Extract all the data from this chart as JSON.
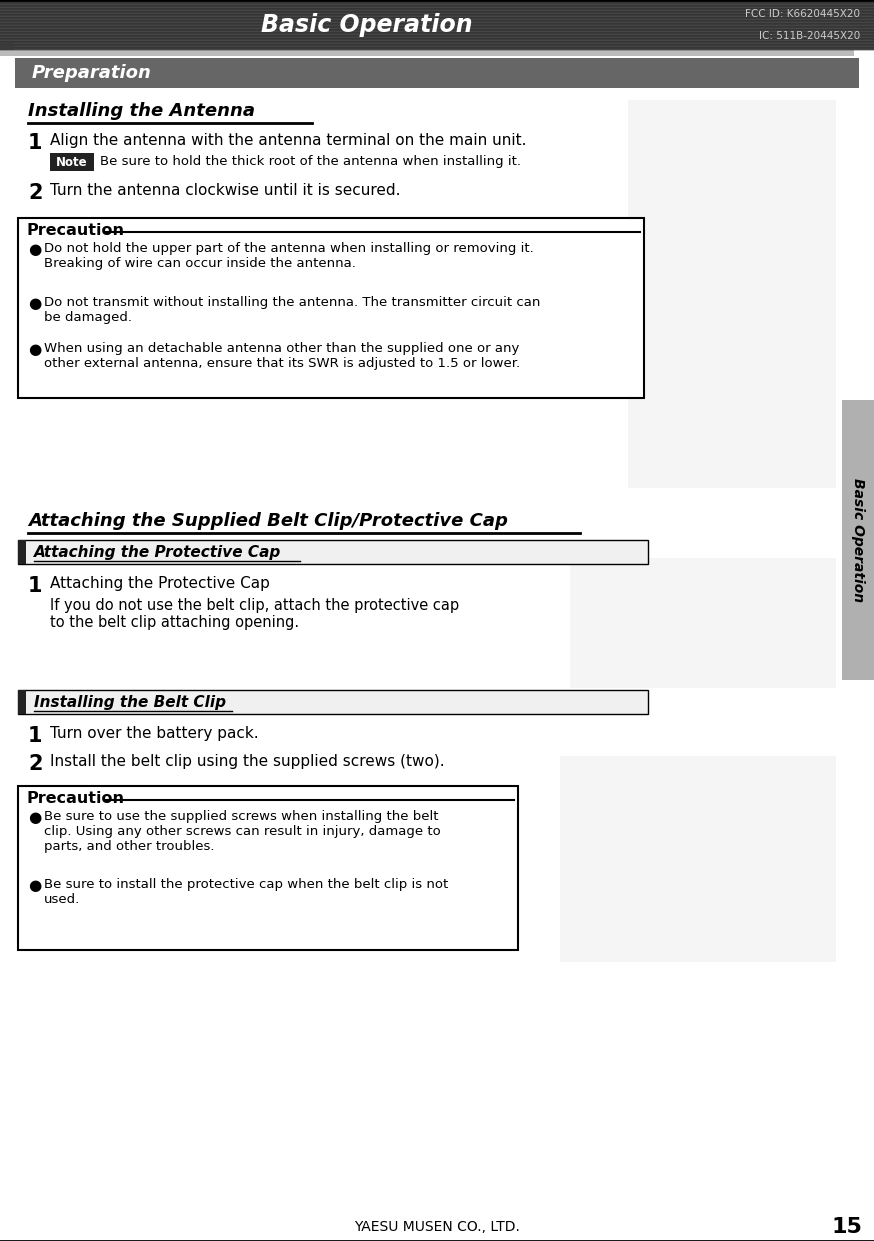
{
  "page_bg": "#ffffff",
  "header_bg": "#404040",
  "header_text": "Basic Operation",
  "header_text_color": "#ffffff",
  "header_fcc_line1": "FCC ID: K6620445X20",
  "header_fcc_line2": "IC: 511B-20445X20",
  "header_fcc_color": "#cccccc",
  "prep_bar_bg": "#666666",
  "prep_bar_text": "Preparation",
  "prep_bar_text_color": "#ffffff",
  "section1_title": "Installing the Antenna",
  "step1_num": "1",
  "step1_text": "Align the antenna with the antenna terminal on the main unit.",
  "note_label": "Note",
  "note_label_bg": "#222222",
  "note_label_color": "#ffffff",
  "note_text": "Be sure to hold the thick root of the antenna when installing it.",
  "step2_num": "2",
  "step2_text": "Turn the antenna clockwise until it is secured.",
  "precaution1_title": "Precaution",
  "precaution1_bullet1": "Do not hold the upper part of the antenna when installing or removing it.\nBreaking of wire can occur inside the antenna.",
  "precaution1_bullet2": "Do not transmit without installing the antenna. The transmitter circuit can\nbe damaged.",
  "precaution1_bullet3": "When using an detachable antenna other than the supplied one or any\nother external antenna, ensure that its SWR is adjusted to 1.5 or lower.",
  "section2_title": "Attaching the Supplied Belt Clip/Protective Cap",
  "subsection2a_title": "Attaching the Protective Cap",
  "step2a1_num": "1",
  "step2a1_text": "Attaching the Protective Cap",
  "step2a1_sub": "If you do not use the belt clip, attach the protective cap\nto the belt clip attaching opening.",
  "subsection2b_title": "Installing the Belt Clip",
  "step2b1_num": "1",
  "step2b1_text": "Turn over the battery pack.",
  "step2b2_num": "2",
  "step2b2_text": "Install the belt clip using the supplied screws (two).",
  "precaution2_title": "Precaution",
  "precaution2_bullet1": "Be sure to use the supplied screws when installing the belt\nclip. Using any other screws can result in injury, damage to\nparts, and other troubles.",
  "precaution2_bullet2": "Be sure to install the protective cap when the belt clip is not\nused.",
  "side_tab_text": "Basic Operation",
  "side_tab_bg": "#b0b0b0",
  "side_tab_text_color": "#000000",
  "page_num": "15",
  "footer_text": "YAESU MUSEN CO., LTD.",
  "body_text_color": "#000000",
  "precaution_box_border": "#000000",
  "precaution_box_bg": "#ffffff",
  "stripe_color": "#555555",
  "header_stripe_colors": [
    "#484848",
    "#383838"
  ]
}
